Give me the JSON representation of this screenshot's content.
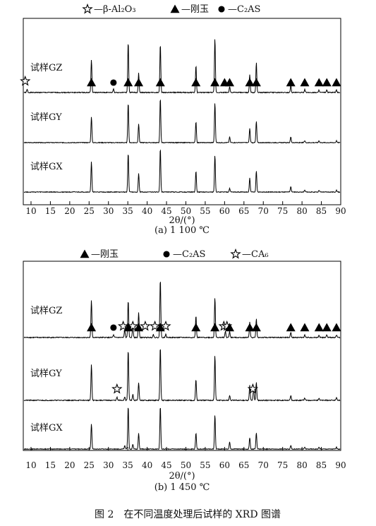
{
  "chart_data": [
    {
      "type": "line",
      "panel_label": "(a) 1 100 ℃",
      "legend": [
        {
          "marker": "star",
          "label": "—β-Al₂O₃"
        },
        {
          "marker": "triangle",
          "label": "—刚玉"
        },
        {
          "marker": "circle",
          "label": "—C₂AS"
        }
      ],
      "xlabel": "2θ/(°)",
      "xlim": [
        8,
        90
      ],
      "xticks": [
        10,
        15,
        20,
        25,
        30,
        35,
        40,
        45,
        50,
        55,
        60,
        65,
        70,
        75,
        80,
        85,
        90
      ],
      "series": [
        {
          "name": "试样GZ",
          "peaks": [
            [
              25.6,
              0.55
            ],
            [
              31.3,
              0.06
            ],
            [
              35.1,
              0.85
            ],
            [
              37.8,
              0.32
            ],
            [
              43.4,
              0.82
            ],
            [
              52.6,
              0.45
            ],
            [
              57.5,
              0.9
            ],
            [
              61.3,
              0.1
            ],
            [
              66.5,
              0.3
            ],
            [
              68.2,
              0.5
            ],
            [
              77.1,
              0.12
            ],
            [
              80.7,
              0.05
            ],
            [
              84.4,
              0.04
            ],
            [
              86.4,
              0.04
            ],
            [
              88.9,
              0.04
            ],
            [
              9.0,
              0.05
            ]
          ],
          "markers": [
            {
              "type": "star",
              "x": 8.5
            },
            {
              "type": "circle",
              "x": 31.3
            },
            {
              "type": "triangle",
              "x": 25.6
            },
            {
              "type": "triangle",
              "x": 35.1
            },
            {
              "type": "triangle",
              "x": 37.8
            },
            {
              "type": "triangle",
              "x": 43.4
            },
            {
              "type": "triangle",
              "x": 52.6
            },
            {
              "type": "triangle",
              "x": 57.5
            },
            {
              "type": "triangle",
              "x": 60.0
            },
            {
              "type": "triangle",
              "x": 61.3
            },
            {
              "type": "triangle",
              "x": 66.5
            },
            {
              "type": "triangle",
              "x": 68.2
            },
            {
              "type": "triangle",
              "x": 77.1
            },
            {
              "type": "triangle",
              "x": 80.7
            },
            {
              "type": "triangle",
              "x": 84.4
            },
            {
              "type": "triangle",
              "x": 86.4
            },
            {
              "type": "triangle",
              "x": 88.9
            }
          ]
        },
        {
          "name": "试样GY",
          "peaks": [
            [
              25.6,
              0.55
            ],
            [
              35.1,
              0.85
            ],
            [
              37.8,
              0.4
            ],
            [
              43.4,
              0.95
            ],
            [
              52.6,
              0.45
            ],
            [
              57.5,
              0.85
            ],
            [
              61.3,
              0.12
            ],
            [
              66.5,
              0.3
            ],
            [
              68.2,
              0.45
            ],
            [
              77.1,
              0.12
            ],
            [
              80.7,
              0.04
            ],
            [
              84.4,
              0.04
            ],
            [
              88.9,
              0.04
            ]
          ],
          "markers": []
        },
        {
          "name": "试样GX",
          "peaks": [
            [
              25.6,
              0.65
            ],
            [
              35.1,
              0.85
            ],
            [
              37.8,
              0.4
            ],
            [
              43.4,
              0.95
            ],
            [
              52.6,
              0.45
            ],
            [
              57.5,
              0.8
            ],
            [
              61.3,
              0.08
            ],
            [
              66.5,
              0.3
            ],
            [
              68.2,
              0.45
            ],
            [
              77.1,
              0.12
            ],
            [
              80.7,
              0.04
            ],
            [
              84.4,
              0.04
            ],
            [
              88.9,
              0.04
            ]
          ],
          "markers": []
        }
      ]
    },
    {
      "type": "line",
      "panel_label": "(b) 1 450 ℃",
      "legend": [
        {
          "marker": "triangle",
          "label": "—刚玉"
        },
        {
          "marker": "circle",
          "label": "—C₂AS"
        },
        {
          "marker": "star",
          "label": "—CA₆"
        }
      ],
      "xlabel": "2θ/(°)",
      "xlim": [
        8,
        90
      ],
      "xticks": [
        10,
        15,
        20,
        25,
        30,
        35,
        40,
        45,
        50,
        55,
        60,
        65,
        70,
        75,
        80,
        85,
        90
      ],
      "series": [
        {
          "name": "试样GZ",
          "peaks": [
            [
              25.6,
              0.6
            ],
            [
              31.3,
              0.04
            ],
            [
              34.2,
              0.12
            ],
            [
              35.1,
              0.6
            ],
            [
              36.3,
              0.2
            ],
            [
              37.8,
              0.4
            ],
            [
              41.6,
              0.05
            ],
            [
              43.4,
              0.95
            ],
            [
              44.8,
              0.05
            ],
            [
              52.6,
              0.35
            ],
            [
              57.5,
              0.65
            ],
            [
              60.2,
              0.1
            ],
            [
              61.3,
              0.1
            ],
            [
              66.5,
              0.25
            ],
            [
              68.2,
              0.3
            ],
            [
              77.1,
              0.08
            ],
            [
              80.7,
              0.04
            ],
            [
              84.4,
              0.04
            ],
            [
              86.4,
              0.04
            ],
            [
              88.9,
              0.04
            ]
          ],
          "markers": [
            {
              "type": "triangle",
              "x": 25.6
            },
            {
              "type": "circle",
              "x": 31.3
            },
            {
              "type": "star",
              "x": 33.8
            },
            {
              "type": "triangle",
              "x": 35.1
            },
            {
              "type": "star",
              "x": 36.3
            },
            {
              "type": "triangle",
              "x": 37.8
            },
            {
              "type": "star",
              "x": 39.5
            },
            {
              "type": "star",
              "x": 42.0
            },
            {
              "type": "triangle",
              "x": 43.4
            },
            {
              "type": "star",
              "x": 44.8
            },
            {
              "type": "triangle",
              "x": 52.6
            },
            {
              "type": "triangle",
              "x": 57.5
            },
            {
              "type": "star",
              "x": 59.8
            },
            {
              "type": "star",
              "x": 60.6
            },
            {
              "type": "triangle",
              "x": 61.3
            },
            {
              "type": "triangle",
              "x": 66.5
            },
            {
              "type": "triangle",
              "x": 68.2
            },
            {
              "type": "triangle",
              "x": 77.1
            },
            {
              "type": "triangle",
              "x": 80.7
            },
            {
              "type": "triangle",
              "x": 84.4
            },
            {
              "type": "triangle",
              "x": 86.4
            },
            {
              "type": "triangle",
              "x": 88.9
            }
          ]
        },
        {
          "name": "试样GY",
          "peaks": [
            [
              25.6,
              0.6
            ],
            [
              32.2,
              0.05
            ],
            [
              34.2,
              0.06
            ],
            [
              35.1,
              0.85
            ],
            [
              36.3,
              0.1
            ],
            [
              37.8,
              0.3
            ],
            [
              43.4,
              0.9
            ],
            [
              52.6,
              0.35
            ],
            [
              57.5,
              0.75
            ],
            [
              61.3,
              0.08
            ],
            [
              66.5,
              0.25
            ],
            [
              67.5,
              0.2
            ],
            [
              68.2,
              0.3
            ],
            [
              77.1,
              0.08
            ],
            [
              80.7,
              0.04
            ],
            [
              84.4,
              0.04
            ],
            [
              88.9,
              0.04
            ]
          ],
          "markers": [
            {
              "type": "star",
              "x": 32.2
            },
            {
              "type": "star",
              "x": 67.3
            }
          ]
        },
        {
          "name": "试样GX",
          "peaks": [
            [
              25.6,
              0.55
            ],
            [
              34.2,
              0.07
            ],
            [
              35.1,
              0.95
            ],
            [
              36.3,
              0.1
            ],
            [
              37.8,
              0.35
            ],
            [
              43.4,
              0.95
            ],
            [
              52.6,
              0.35
            ],
            [
              57.5,
              0.75
            ],
            [
              61.3,
              0.15
            ],
            [
              66.5,
              0.25
            ],
            [
              68.2,
              0.35
            ],
            [
              77.1,
              0.08
            ],
            [
              80.7,
              0.04
            ],
            [
              84.4,
              0.04
            ],
            [
              88.9,
              0.04
            ]
          ],
          "markers": []
        }
      ]
    }
  ],
  "caption": "图 2　在不同温度处理后试样的 XRD 图谱"
}
